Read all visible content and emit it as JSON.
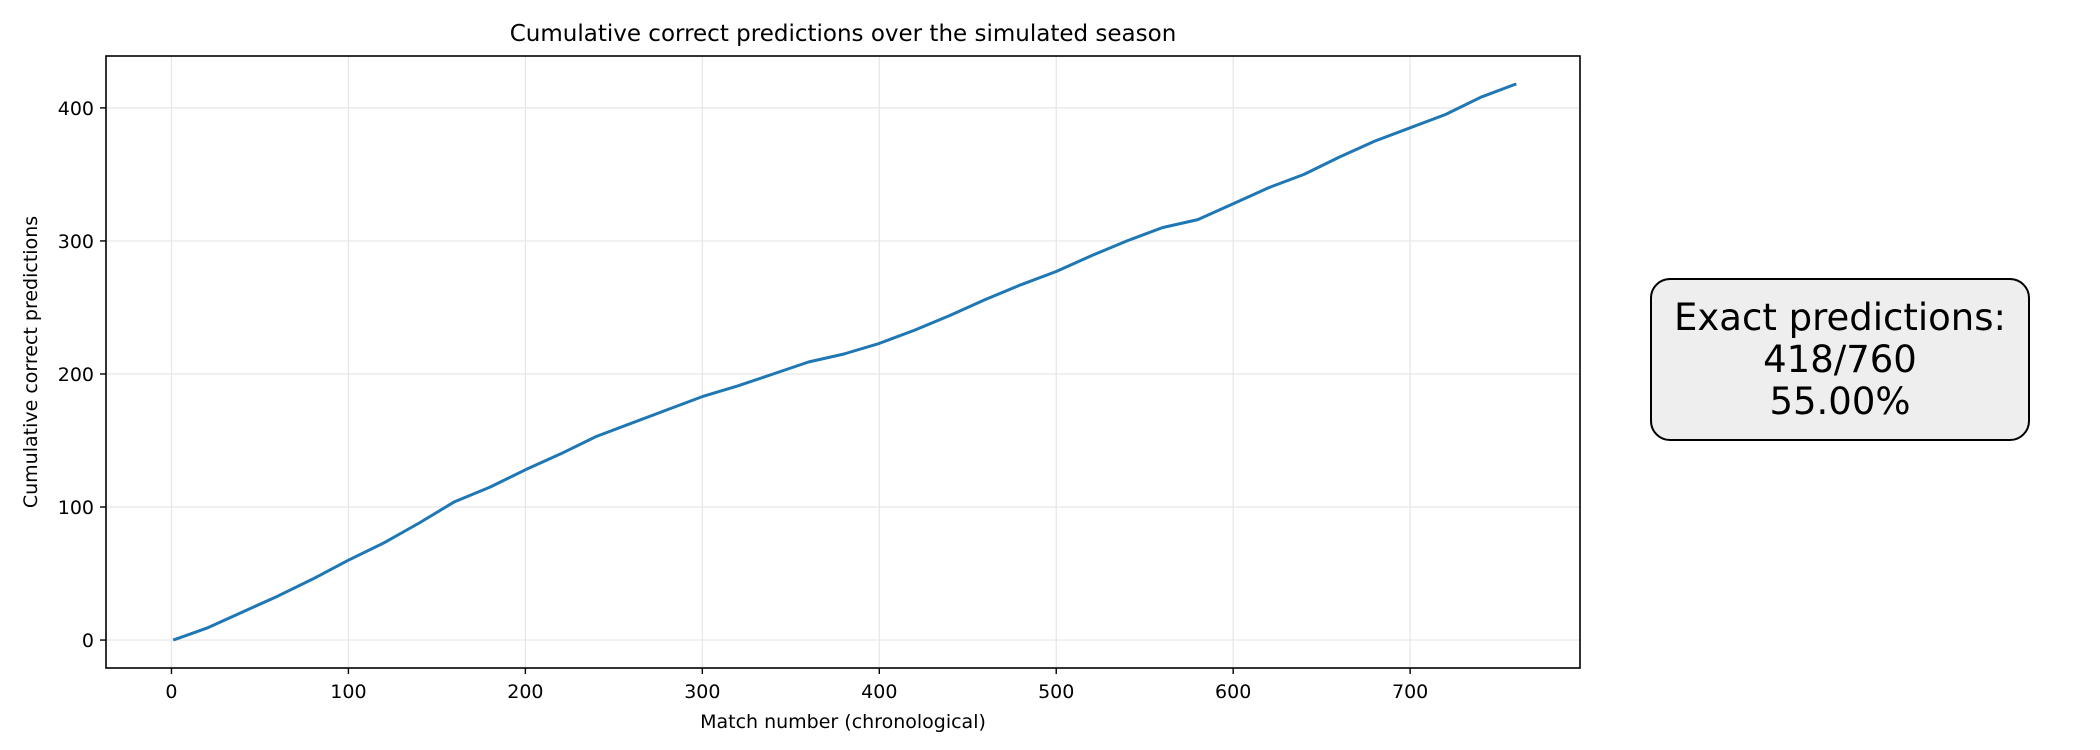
{
  "chart_data": {
    "type": "line",
    "title": "Cumulative correct predictions over the simulated season",
    "xlabel": "Match number (chronological)",
    "ylabel": "Cumulative correct predictions",
    "xlim": [
      -37,
      796
    ],
    "ylim": [
      -21,
      439
    ],
    "xticks": [
      0,
      100,
      200,
      300,
      400,
      500,
      600,
      700
    ],
    "yticks": [
      0,
      100,
      200,
      300,
      400
    ],
    "grid": true,
    "line_color": "#1f77b4",
    "series": [
      {
        "x": [
          1,
          20,
          40,
          60,
          80,
          100,
          120,
          140,
          160,
          180,
          200,
          220,
          240,
          260,
          280,
          300,
          320,
          340,
          360,
          380,
          400,
          420,
          440,
          460,
          480,
          500,
          520,
          540,
          560,
          580,
          600,
          620,
          640,
          660,
          680,
          700,
          720,
          740,
          760
        ],
        "y": [
          0,
          9,
          21,
          33,
          46,
          60,
          73,
          88,
          104,
          115,
          128,
          140,
          153,
          163,
          173,
          183,
          191,
          200,
          209,
          215,
          223,
          233,
          244,
          256,
          267,
          277,
          289,
          300,
          310,
          316,
          328,
          340,
          350,
          363,
          375,
          385,
          395,
          408,
          418
        ]
      }
    ]
  },
  "summary": {
    "line1": "Exact predictions:",
    "line2": "418/760",
    "line3": "55.00%"
  }
}
